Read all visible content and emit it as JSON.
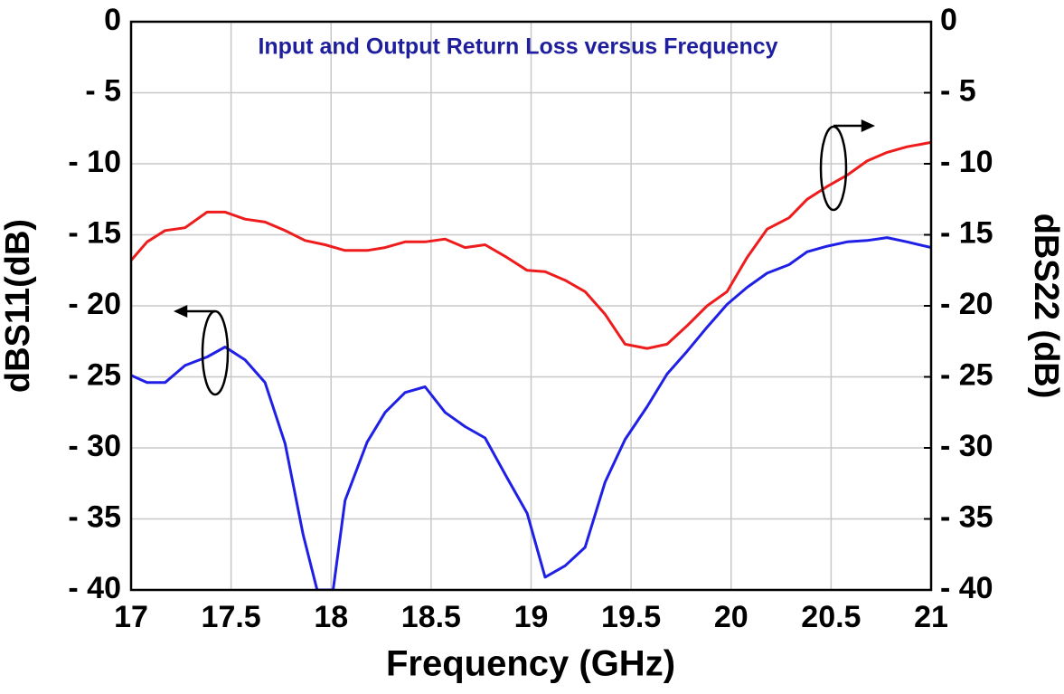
{
  "chart_data": {
    "type": "line",
    "title": "Input and Output Return Loss versus Frequency",
    "x_label": "Frequency (GHz)",
    "y_label": "dBS11(dB)",
    "y2_label": "dBS22 (dB)",
    "xlim": [
      17,
      21
    ],
    "xticks": [
      17,
      17.5,
      18,
      18.5,
      19,
      19.5,
      20,
      20.5,
      21
    ],
    "ylim": [
      -40,
      0
    ],
    "yticks": [
      0,
      {
        "value": -5,
        "label": "- 5"
      },
      {
        "value": -10,
        "label": "- 10"
      },
      {
        "value": -15,
        "label": "- 15"
      },
      {
        "value": -20,
        "label": "- 20"
      },
      {
        "value": -25,
        "label": "- 25"
      },
      {
        "value": -30,
        "label": "- 30"
      },
      {
        "value": -35,
        "label": "- 35"
      },
      {
        "value": -40,
        "label": "- 40"
      }
    ],
    "y2lim": [
      -40,
      0
    ],
    "y2ticks": [
      0,
      {
        "value": -5,
        "label": "- 5"
      },
      {
        "value": -10,
        "label": "- 10"
      },
      {
        "value": -15,
        "label": "- 15"
      },
      {
        "value": -20,
        "label": "- 20"
      },
      {
        "value": -25,
        "label": "- 25"
      },
      {
        "value": -30,
        "label": "- 30"
      },
      {
        "value": -35,
        "label": "- 35"
      },
      {
        "value": -40,
        "label": "- 40"
      }
    ],
    "grid": true,
    "series": [
      {
        "color": "#1f1fe6",
        "axis": "y",
        "x": [
          17,
          17.08,
          17.17,
          17.27,
          17.38,
          17.47,
          17.57,
          17.67,
          17.77,
          17.86,
          17.93,
          18.01,
          18.07,
          18.18,
          18.27,
          18.37,
          18.47,
          18.57,
          18.67,
          18.77,
          18.88,
          18.98,
          19.07,
          19.17,
          19.27,
          19.37,
          19.47,
          19.58,
          19.68,
          19.78,
          19.88,
          19.98,
          20.08,
          20.18,
          20.29,
          20.38,
          20.48,
          20.58,
          20.68,
          20.78,
          20.88,
          21
        ],
        "values": [
          -24.9,
          -25.4,
          -25.4,
          -24.2,
          -23.6,
          -22.9,
          -23.8,
          -25.4,
          -29.7,
          -36.1,
          -40,
          -40,
          -33.7,
          -29.6,
          -27.5,
          -26.1,
          -25.7,
          -27.5,
          -28.5,
          -29.3,
          -32.1,
          -34.6,
          -39.1,
          -38.3,
          -37,
          -32.4,
          -29.4,
          -27.1,
          -24.8,
          -23.2,
          -21.5,
          -19.9,
          -18.7,
          -17.7,
          -17.1,
          -16.2,
          -15.8,
          -15.5,
          -15.4,
          -15.2,
          -15.5,
          -15.9
        ]
      },
      {
        "color": "#ee1c1c",
        "axis": "y2",
        "x": [
          17,
          17.08,
          17.17,
          17.27,
          17.38,
          17.47,
          17.57,
          17.67,
          17.77,
          17.87,
          17.97,
          18.07,
          18.18,
          18.27,
          18.37,
          18.47,
          18.57,
          18.67,
          18.77,
          18.88,
          18.98,
          19.07,
          19.17,
          19.27,
          19.37,
          19.47,
          19.58,
          19.68,
          19.78,
          19.88,
          19.98,
          20.08,
          20.18,
          20.29,
          20.38,
          20.48,
          20.58,
          20.68,
          20.78,
          20.88,
          21
        ],
        "values": [
          -16.8,
          -15.5,
          -14.7,
          -14.5,
          -13.4,
          -13.4,
          -13.9,
          -14.1,
          -14.7,
          -15.4,
          -15.7,
          -16.1,
          -16.1,
          -15.9,
          -15.5,
          -15.5,
          -15.3,
          -15.9,
          -15.7,
          -16.6,
          -17.5,
          -17.6,
          -18.2,
          -19,
          -20.6,
          -22.7,
          -23,
          -22.7,
          -21.4,
          -20,
          -19,
          -16.6,
          -14.6,
          -13.8,
          -12.5,
          -11.6,
          -10.8,
          -9.8,
          -9.2,
          -8.8,
          -8.5
        ]
      }
    ]
  }
}
